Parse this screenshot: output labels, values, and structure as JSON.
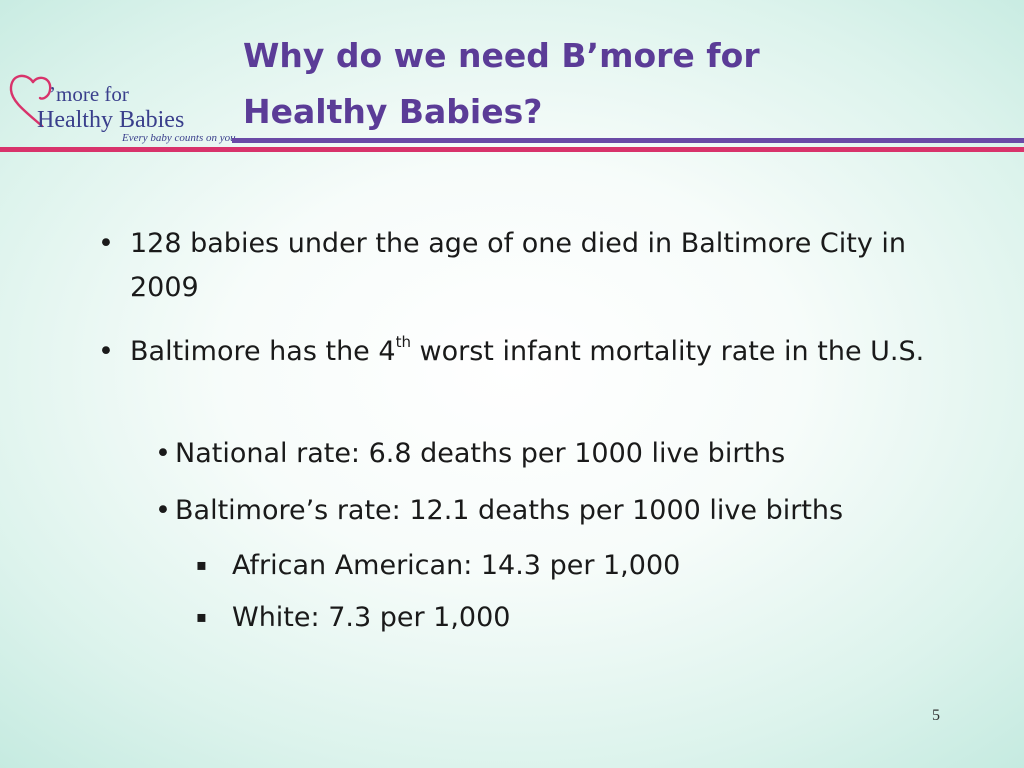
{
  "logo": {
    "line1": "’more for",
    "line2": "Healthy Babies",
    "tagline": "Every baby counts on you"
  },
  "title": {
    "line1": "Why do we need B’more for",
    "line2": "Healthy Babies?"
  },
  "bullets": [
    {
      "text": "128 babies under the age of one died in Baltimore City in 2009"
    },
    {
      "text_before": "Baltimore has the 4",
      "sup": "th",
      "text_after": " worst infant mortality rate in the U.S."
    }
  ],
  "sub_bullets": [
    "National rate: 6.8 deaths per 1000 live births",
    "Baltimore’s rate: 12.1 deaths per 1000 live births"
  ],
  "sub_sub_bullets": [
    "African American: 14.3 per 1,000",
    "White: 7.3 per 1,000"
  ],
  "markers": {
    "level1": "•",
    "level2": "•",
    "level3": "▪"
  },
  "page_number": "5",
  "colors": {
    "title": "#5b3c97",
    "rule_purple": "#6a4aa6",
    "rule_pink": "#d8336b",
    "logo_text": "#3a3f8c",
    "logo_heart": "#d8336b"
  }
}
